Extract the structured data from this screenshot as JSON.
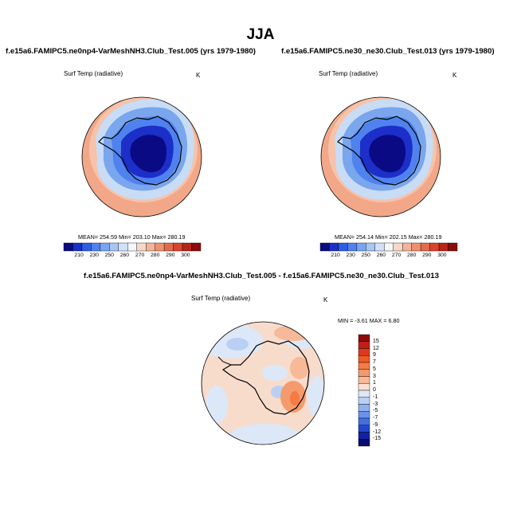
{
  "season": "JJA",
  "panels": [
    {
      "title": "f.e15a6.FAMIPC5.ne0np4-VarMeshNH3.Club_Test.005 (yrs 1979-1980)",
      "variable": "Surf Temp (radiative)",
      "units": "K",
      "stats_text": "MEAN= 254.59  Min= 203.10  Max= 280.19",
      "stats": {
        "mean": 254.59,
        "min": 203.1,
        "max": 280.19
      }
    },
    {
      "title": "f.e15a6.FAMIPC5.ne30_ne30.Club_Test.013 (yrs 1979-1980)",
      "variable": "Surf Temp (radiative)",
      "units": "K",
      "stats_text": "MEAN= 254.14  Min= 202.15  Max= 280.19",
      "stats": {
        "mean": 254.14,
        "min": 202.15,
        "max": 280.19
      }
    }
  ],
  "diff_panel": {
    "title": "f.e15a6.FAMIPC5.ne0np4-VarMeshNH3.Club_Test.005 - f.e15a6.FAMIPC5.ne30_ne30.Club_Test.013",
    "variable": "Surf Temp (radiative)",
    "units": "K",
    "stats_text": "MIN = -3.61 MAX =  6.80",
    "stats": {
      "min": -3.61,
      "max": 6.8
    }
  },
  "colorbar_abs": {
    "labels": [
      "210",
      "230",
      "250",
      "260",
      "270",
      "280",
      "290",
      "300"
    ],
    "colors": [
      "#0a0a84",
      "#1c2fc8",
      "#2d5ee6",
      "#4f82ee",
      "#7aa4f2",
      "#a8c6f5",
      "#d2e1f7",
      "#f3f6fb",
      "#f8d7c9",
      "#f4b498",
      "#ee9070",
      "#e56a48",
      "#d9442b",
      "#bb2418",
      "#8c0c0c"
    ]
  },
  "colorbar_diff": {
    "labels": [
      "15",
      "12",
      "9",
      "7",
      "5",
      "3",
      "1",
      "0",
      "-1",
      "-3",
      "-5",
      "-7",
      "-9",
      "-12",
      "-15"
    ],
    "colors": [
      "#8c0c0c",
      "#c01f14",
      "#dd3a1d",
      "#ef5a26",
      "#f57b44",
      "#f59a6c",
      "#f7b997",
      "#fbe0cf",
      "#dce8f8",
      "#b9d0f4",
      "#8fb2ef",
      "#6893ea",
      "#4270e3",
      "#2547cf",
      "#1022a6",
      "#0a0a70"
    ]
  },
  "map_style": {
    "ocean_outer": "#f2a888",
    "ocean_mid": "#f6c3aa",
    "ocean_inner": "#c8dcf6",
    "ice_edge": "#7aa6ee",
    "ice_mid": "#2d5ee6",
    "ice_core": "#0a0a84",
    "diff_background": "#f7dccc"
  }
}
